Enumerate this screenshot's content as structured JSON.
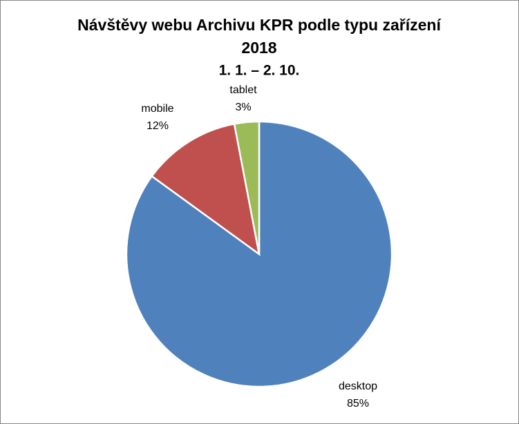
{
  "chart_data": {
    "type": "pie",
    "title": "Návštěvy webu Archivu KPR podle typu zařízení",
    "subtitle": "2018",
    "subtitle2": "1. 1. – 2. 10.",
    "categories": [
      "desktop",
      "mobile",
      "tablet"
    ],
    "values": [
      85,
      12,
      3
    ],
    "value_labels": [
      "85%",
      "12%",
      "3%"
    ],
    "colors": [
      "#4f81bd",
      "#c0504d",
      "#9bbb59"
    ]
  }
}
